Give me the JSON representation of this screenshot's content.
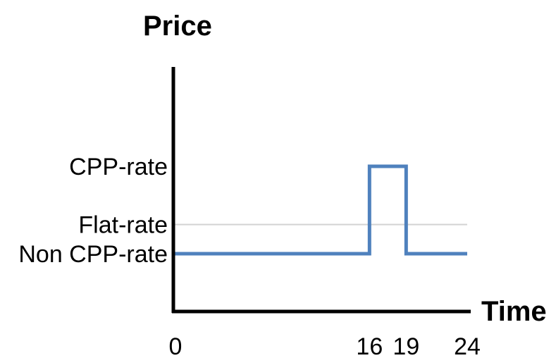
{
  "chart_data": {
    "type": "line",
    "title": "",
    "xlabel": "Time",
    "ylabel": "Price",
    "xlim": [
      0,
      24
    ],
    "x_ticks": [
      0,
      16,
      19,
      24
    ],
    "y_levels": [
      {
        "label": "Non CPP-rate",
        "value": 1
      },
      {
        "label": "Flat-rate",
        "value": 1.5
      },
      {
        "label": "CPP-rate",
        "value": 2.5
      }
    ],
    "series": [
      {
        "color": "#4f81bd",
        "x": [
          0,
          16,
          16,
          19,
          19,
          24
        ],
        "y": [
          1,
          1,
          2.5,
          2.5,
          1,
          1
        ]
      }
    ],
    "reference_lines": [
      {
        "y": 1.5,
        "color": "#d3d3d3"
      }
    ],
    "grid": false,
    "legend": "none"
  }
}
